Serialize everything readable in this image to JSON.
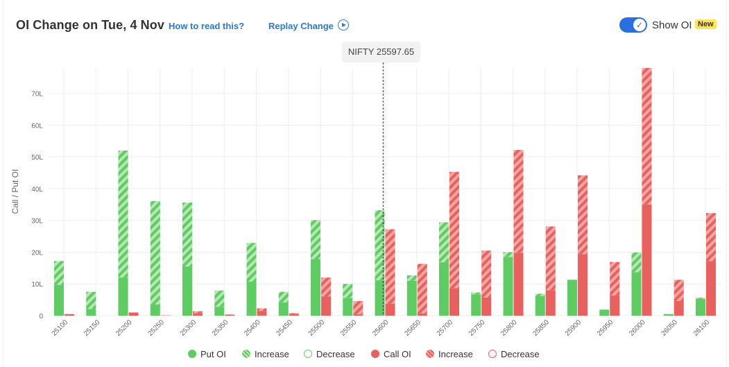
{
  "header": {
    "title": "OI Change on Tue, 4 Nov",
    "how_to_read": "How to read this?",
    "replay_change": "Replay Change",
    "show_oi_label": "Show OI",
    "new_badge": "New",
    "show_oi_enabled": true
  },
  "spot": {
    "label": "NIFTY 25597.65"
  },
  "colors": {
    "put": "#5fcc63",
    "put_light": "#b6e8b4",
    "call": "#e8615f",
    "call_light": "#f4a6a4",
    "grid": "#eeeeee",
    "axis_text": "#666666"
  },
  "legend": [
    {
      "label": "Put OI",
      "style": "put-solid"
    },
    {
      "label": "Increase",
      "style": "put-hatch"
    },
    {
      "label": "Decrease",
      "style": "put-outline"
    },
    {
      "label": "Call OI",
      "style": "call-solid"
    },
    {
      "label": "Increase",
      "style": "call-hatch"
    },
    {
      "label": "Decrease",
      "style": "call-outline"
    }
  ],
  "chart_data": {
    "type": "bar",
    "ylabel": "Call / Put OI",
    "ylim": [
      0,
      78
    ],
    "yticks": [
      0,
      10,
      20,
      30,
      40,
      50,
      60,
      70
    ],
    "ytick_labels": [
      "0",
      "10L",
      "20L",
      "30L",
      "40L",
      "50L",
      "60L",
      "70L"
    ],
    "spot_value": 25597.65,
    "categories": [
      "25100",
      "25150",
      "25200",
      "25250",
      "25300",
      "25350",
      "25400",
      "25450",
      "25500",
      "25550",
      "25600",
      "25650",
      "25700",
      "25750",
      "25800",
      "25850",
      "25900",
      "25950",
      "26000",
      "26050",
      "26100"
    ],
    "series": [
      {
        "name": "Put OI",
        "values": [
          9.7,
          2.1,
          12,
          3.5,
          15.5,
          2.8,
          10.7,
          4.2,
          17.8,
          5.6,
          11.2,
          11,
          16.8,
          6.7,
          18.5,
          6.2,
          11.3,
          1.9,
          13.7,
          0.5,
          5.3
        ]
      },
      {
        "name": "Increase",
        "values": [
          7.5,
          5.4,
          40,
          32.6,
          20.1,
          5.1,
          12.2,
          3.3,
          12.3,
          4.4,
          22,
          1.7,
          12.6,
          0.6,
          1.5,
          0.7,
          0,
          0,
          6.2,
          0,
          0.4
        ]
      },
      {
        "name": "Call OI",
        "values": [
          0.5,
          0,
          1,
          0.1,
          0.8,
          0.3,
          1.5,
          0.6,
          6,
          0.5,
          3.8,
          0.7,
          8.7,
          5.7,
          19.8,
          8,
          19.4,
          6.4,
          35,
          4.6,
          17.2
        ]
      },
      {
        "name": "Increase",
        "values": [
          0,
          0,
          0,
          0,
          0.6,
          0.1,
          0.8,
          0.2,
          6,
          4.1,
          23.4,
          15.6,
          36.6,
          14.8,
          32.4,
          20.1,
          24.8,
          10.5,
          43,
          6.7,
          15.1
        ]
      }
    ]
  }
}
